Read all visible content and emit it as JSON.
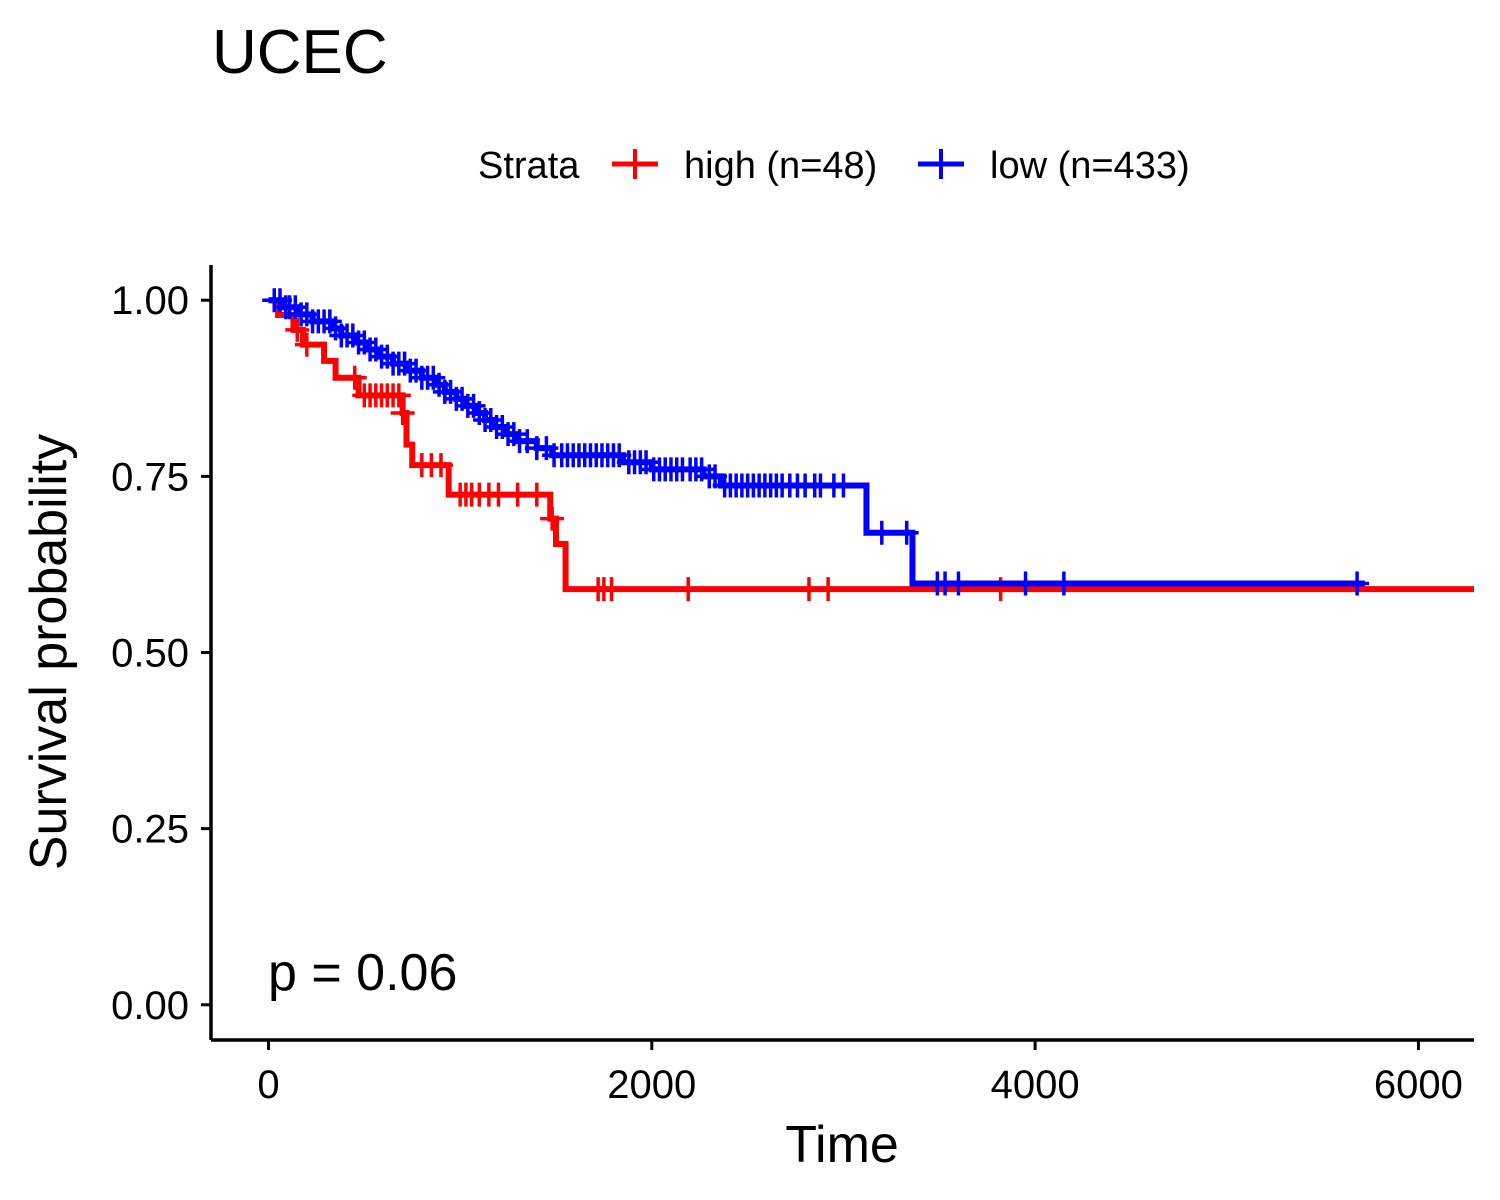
{
  "chart_data": {
    "type": "line",
    "subtype": "kaplan-meier",
    "title": "UCEC",
    "xlabel": "Time",
    "ylabel": "Survival probability",
    "xlim": [
      -300,
      6290
    ],
    "ylim": [
      -0.05,
      1.05
    ],
    "x_ticks": [
      0,
      2000,
      4000,
      6000
    ],
    "x_tick_labels": [
      "0",
      "2000",
      "4000",
      "6000"
    ],
    "y_ticks": [
      0,
      0.25,
      0.5,
      0.75,
      1.0
    ],
    "y_tick_labels": [
      "0.00",
      "0.25",
      "0.50",
      "0.75",
      "1.00"
    ],
    "grid": false,
    "legend": {
      "title": "Strata",
      "position": "top",
      "entries": [
        "high (n=48)",
        "low (n=433)"
      ]
    },
    "annotation": "p = 0.06",
    "series": [
      {
        "name": "high (n=48)",
        "color": "#ff0000",
        "steps": [
          [
            0,
            1.0
          ],
          [
            50,
            0.979
          ],
          [
            130,
            0.958
          ],
          [
            180,
            0.937
          ],
          [
            290,
            0.914
          ],
          [
            350,
            0.89
          ],
          [
            470,
            0.865
          ],
          [
            700,
            0.84
          ],
          [
            720,
            0.795
          ],
          [
            750,
            0.766
          ],
          [
            940,
            0.724
          ],
          [
            1470,
            0.69
          ],
          [
            1500,
            0.654
          ],
          [
            1550,
            0.59
          ],
          [
            6290,
            0.59
          ]
        ],
        "censor_times": [
          150,
          200,
          450,
          500,
          530,
          560,
          590,
          620,
          650,
          680,
          700,
          800,
          850,
          900,
          1000,
          1030,
          1060,
          1100,
          1150,
          1200,
          1300,
          1400,
          1480,
          1720,
          1750,
          1790,
          2190,
          2820,
          2920,
          3820
        ]
      },
      {
        "name": "low (n=433)",
        "color": "#0000ff",
        "steps": [
          [
            0,
            1.0
          ],
          [
            70,
            0.99
          ],
          [
            150,
            0.98
          ],
          [
            230,
            0.97
          ],
          [
            330,
            0.96
          ],
          [
            380,
            0.95
          ],
          [
            450,
            0.94
          ],
          [
            520,
            0.93
          ],
          [
            580,
            0.92
          ],
          [
            650,
            0.91
          ],
          [
            720,
            0.9
          ],
          [
            800,
            0.89
          ],
          [
            870,
            0.88
          ],
          [
            920,
            0.87
          ],
          [
            980,
            0.86
          ],
          [
            1030,
            0.85
          ],
          [
            1080,
            0.84
          ],
          [
            1130,
            0.83
          ],
          [
            1180,
            0.82
          ],
          [
            1240,
            0.81
          ],
          [
            1300,
            0.8
          ],
          [
            1400,
            0.79
          ],
          [
            1480,
            0.78
          ],
          [
            1850,
            0.77
          ],
          [
            2000,
            0.76
          ],
          [
            2270,
            0.75
          ],
          [
            2360,
            0.737
          ],
          [
            3120,
            0.67
          ],
          [
            3360,
            0.598
          ],
          [
            5720,
            0.598
          ]
        ],
        "censor_times": [
          30,
          60,
          90,
          110,
          140,
          170,
          200,
          230,
          260,
          290,
          320,
          350,
          380,
          410,
          440,
          470,
          500,
          530,
          560,
          590,
          620,
          650,
          680,
          710,
          740,
          770,
          800,
          830,
          860,
          890,
          920,
          950,
          980,
          1010,
          1040,
          1070,
          1100,
          1130,
          1160,
          1190,
          1220,
          1250,
          1280,
          1310,
          1350,
          1400,
          1450,
          1490,
          1530,
          1560,
          1590,
          1620,
          1650,
          1680,
          1710,
          1740,
          1770,
          1800,
          1830,
          1880,
          1910,
          1940,
          1970,
          2010,
          2040,
          2070,
          2100,
          2130,
          2160,
          2200,
          2230,
          2260,
          2300,
          2330,
          2380,
          2410,
          2440,
          2470,
          2500,
          2530,
          2560,
          2590,
          2620,
          2650,
          2680,
          2720,
          2760,
          2800,
          2850,
          2880,
          2950,
          3000,
          3200,
          3330,
          3490,
          3530,
          3600,
          3950,
          4150,
          5680
        ]
      }
    ]
  }
}
